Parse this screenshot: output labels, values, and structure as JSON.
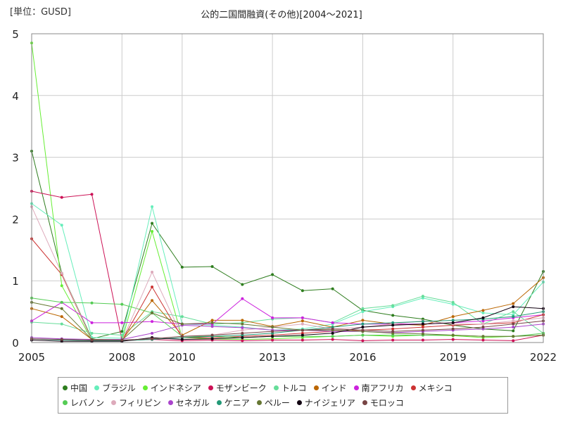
{
  "header": {
    "unit_label": "[単位：GUSD]",
    "title": "公的二国間融資(その他)[2004～2021]"
  },
  "chart_data": {
    "type": "line",
    "title": "公的二国間融資(その他)[2004～2021]",
    "xlabel": "",
    "ylabel": "[単位：GUSD]",
    "xlim": [
      2005,
      2022
    ],
    "ylim": [
      0,
      5
    ],
    "x_ticks": [
      "2005",
      "2008",
      "2010",
      "2013",
      "2016",
      "2019",
      "2022"
    ],
    "y_ticks": [
      "0",
      "1",
      "2",
      "3",
      "4",
      "5"
    ],
    "grid": true,
    "legend_position": "bottom",
    "x": [
      2005,
      2006,
      2007,
      2008,
      2009,
      2010,
      2011,
      2012,
      2013,
      2014,
      2015,
      2016,
      2017,
      2018,
      2019,
      2020,
      2021,
      2022
    ],
    "series": [
      {
        "name": "中国",
        "color": "#2e7d1e",
        "values": [
          3.1,
          1.12,
          0.06,
          0.18,
          1.93,
          1.22,
          1.23,
          0.94,
          1.1,
          0.84,
          0.87,
          0.52,
          0.44,
          0.38,
          0.28,
          0.22,
          0.19,
          1.15
        ]
      },
      {
        "name": "ブラジル",
        "color": "#66eebb",
        "values": [
          2.25,
          1.9,
          0.08,
          0.07,
          2.2,
          0.3,
          0.28,
          0.25,
          0.2,
          0.22,
          0.3,
          0.5,
          0.58,
          0.72,
          0.62,
          0.48,
          0.45,
          0.98
        ]
      },
      {
        "name": "インドネシア",
        "color": "#66ee33",
        "values": [
          4.85,
          0.92,
          0.04,
          0.03,
          1.8,
          0.08,
          0.06,
          0.05,
          0.06,
          0.08,
          0.1,
          0.12,
          0.1,
          0.12,
          0.11,
          0.08,
          0.1,
          0.12
        ]
      },
      {
        "name": "モザンビーク",
        "color": "#cc1155",
        "values": [
          2.45,
          2.35,
          2.4,
          0.03,
          0.05,
          0.03,
          0.04,
          0.03,
          0.04,
          0.04,
          0.05,
          0.03,
          0.04,
          0.04,
          0.05,
          0.04,
          0.03,
          0.12
        ]
      },
      {
        "name": "トルコ",
        "color": "#66dd99",
        "values": [
          0.33,
          0.3,
          0.15,
          0.12,
          0.5,
          0.42,
          0.3,
          0.32,
          0.38,
          0.4,
          0.32,
          0.55,
          0.6,
          0.75,
          0.65,
          0.3,
          0.5,
          0.15
        ]
      },
      {
        "name": "インド",
        "color": "#bb6600",
        "values": [
          0.55,
          0.42,
          0.05,
          0.04,
          0.68,
          0.12,
          0.36,
          0.36,
          0.26,
          0.35,
          0.25,
          0.36,
          0.3,
          0.28,
          0.42,
          0.52,
          0.63,
          1.05
        ]
      },
      {
        "name": "南アフリカ",
        "color": "#cc22dd",
        "values": [
          0.35,
          0.65,
          0.32,
          0.32,
          0.34,
          0.3,
          0.3,
          0.71,
          0.4,
          0.4,
          0.32,
          0.3,
          0.3,
          0.3,
          0.32,
          0.35,
          0.4,
          0.45
        ]
      },
      {
        "name": "メキシコ",
        "color": "#cc3333",
        "values": [
          1.68,
          1.1,
          0.04,
          0.03,
          0.9,
          0.08,
          0.08,
          0.1,
          0.12,
          0.15,
          0.18,
          0.2,
          0.22,
          0.25,
          0.28,
          0.3,
          0.32,
          0.45
        ]
      },
      {
        "name": "レバノン",
        "color": "#55cc55",
        "values": [
          0.72,
          0.65,
          0.64,
          0.62,
          0.48,
          0.1,
          0.1,
          0.08,
          0.1,
          0.1,
          0.1,
          0.12,
          0.12,
          0.12,
          0.12,
          0.1,
          0.1,
          0.15
        ]
      },
      {
        "name": "フィリピン",
        "color": "#ddaabb",
        "values": [
          2.2,
          1.12,
          0.04,
          0.03,
          1.14,
          0.1,
          0.12,
          0.2,
          0.25,
          0.3,
          0.22,
          0.25,
          0.3,
          0.35,
          0.3,
          0.3,
          0.35,
          0.4
        ]
      },
      {
        "name": "セネガル",
        "color": "#aa44cc",
        "values": [
          0.08,
          0.06,
          0.05,
          0.05,
          0.15,
          0.28,
          0.26,
          0.24,
          0.2,
          0.2,
          0.18,
          0.18,
          0.16,
          0.18,
          0.2,
          0.22,
          0.25,
          0.3
        ]
      },
      {
        "name": "ケニア",
        "color": "#229977",
        "values": [
          0.06,
          0.04,
          0.03,
          0.03,
          0.05,
          0.08,
          0.1,
          0.12,
          0.15,
          0.2,
          0.25,
          0.3,
          0.32,
          0.34,
          0.36,
          0.38,
          0.42,
          0.5
        ]
      },
      {
        "name": "ペルー",
        "color": "#667733",
        "values": [
          0.65,
          0.55,
          0.05,
          0.04,
          0.48,
          0.3,
          0.32,
          0.3,
          0.25,
          0.2,
          0.2,
          0.18,
          0.15,
          0.14,
          0.12,
          0.1,
          0.1,
          0.12
        ]
      },
      {
        "name": "ナイジェリア",
        "color": "#110011",
        "values": [
          0.04,
          0.02,
          0.02,
          0.02,
          0.08,
          0.05,
          0.06,
          0.08,
          0.1,
          0.12,
          0.15,
          0.25,
          0.28,
          0.3,
          0.32,
          0.4,
          0.58,
          0.55
        ]
      },
      {
        "name": "モロッコ",
        "color": "#774444",
        "values": [
          0.06,
          0.05,
          0.04,
          0.04,
          0.06,
          0.1,
          0.12,
          0.15,
          0.18,
          0.2,
          0.22,
          0.2,
          0.18,
          0.2,
          0.22,
          0.25,
          0.3,
          0.35
        ]
      }
    ]
  }
}
